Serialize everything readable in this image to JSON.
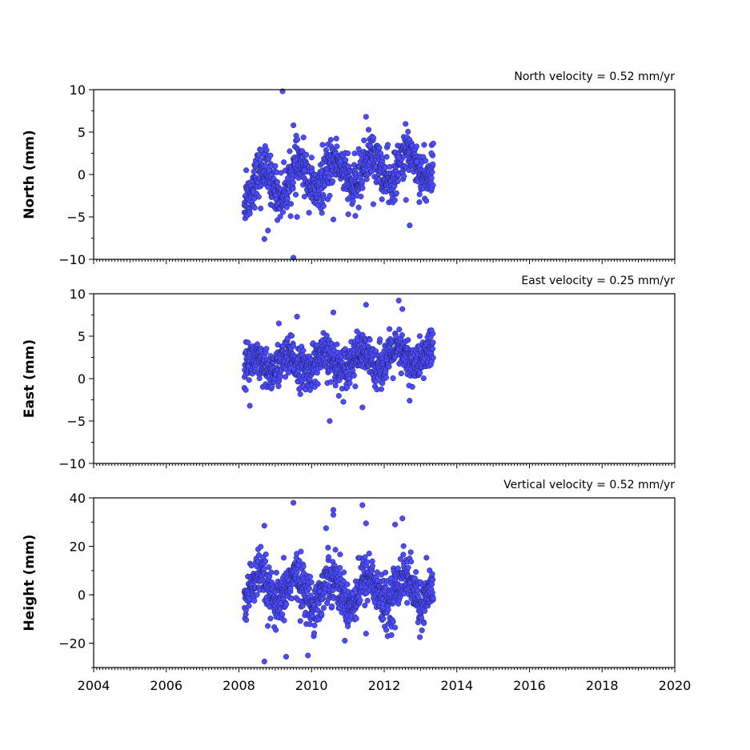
{
  "chart_data": [
    {
      "type": "scatter",
      "ylabel": "North (mm)",
      "annotation": "North velocity = 0.52 mm/yr",
      "xlim": [
        2004,
        2020
      ],
      "ylim": [
        -10,
        10
      ],
      "yticks": [
        10,
        5,
        0,
        -5,
        -10
      ],
      "ytick_labels": [
        "10",
        "5",
        "0",
        "−5",
        "−10"
      ],
      "xticks": [
        2004,
        2006,
        2008,
        2010,
        2012,
        2014,
        2016,
        2018,
        2020
      ],
      "xtick_labels": [],
      "marker_color": "#4c4cff",
      "data_x_range": [
        2008.15,
        2013.35
      ],
      "series_description_points": [
        [
          2008.2,
          0.5
        ],
        [
          2008.4,
          -2.0
        ],
        [
          2008.6,
          -4.0
        ],
        [
          2008.8,
          -1.5
        ],
        [
          2009.0,
          1.0
        ],
        [
          2009.2,
          9.8
        ],
        [
          2009.5,
          5.8
        ],
        [
          2009.5,
          -9.8
        ],
        [
          2009.6,
          -5.0
        ],
        [
          2009.8,
          0.5
        ],
        [
          2010.0,
          2.0
        ],
        [
          2010.3,
          3.5
        ],
        [
          2010.5,
          -2.5
        ],
        [
          2010.6,
          -5.3
        ],
        [
          2010.8,
          1.5
        ],
        [
          2011.0,
          2.5
        ],
        [
          2011.3,
          3.0
        ],
        [
          2011.5,
          6.8
        ],
        [
          2011.7,
          -3.5
        ],
        [
          2011.9,
          2.5
        ],
        [
          2012.1,
          3.5
        ],
        [
          2012.4,
          2.0
        ],
        [
          2012.6,
          -3.0
        ],
        [
          2012.7,
          -6.0
        ],
        [
          2012.9,
          1.5
        ],
        [
          2013.1,
          3.5
        ],
        [
          2013.3,
          2.5
        ],
        [
          2008.7,
          -7.6
        ],
        [
          2008.8,
          -6.6
        ]
      ]
    },
    {
      "type": "scatter",
      "ylabel": "East (mm)",
      "annotation": "East velocity = 0.25 mm/yr",
      "xlim": [
        2004,
        2020
      ],
      "ylim": [
        -10,
        10
      ],
      "yticks": [
        10,
        5,
        0,
        -5,
        -10
      ],
      "ytick_labels": [
        "10",
        "5",
        "0",
        "−5",
        "−10"
      ],
      "xticks": [
        2004,
        2006,
        2008,
        2010,
        2012,
        2014,
        2016,
        2018,
        2020
      ],
      "xtick_labels": [],
      "marker_color": "#4c4cff",
      "data_x_range": [
        2008.15,
        2013.35
      ],
      "series_description_points": [
        [
          2008.3,
          -3.2
        ],
        [
          2009.1,
          6.5
        ],
        [
          2009.6,
          7.3
        ],
        [
          2010.5,
          -5.0
        ],
        [
          2010.6,
          7.8
        ],
        [
          2011.4,
          -3.4
        ],
        [
          2011.5,
          8.7
        ],
        [
          2012.4,
          9.2
        ],
        [
          2012.5,
          8.2
        ],
        [
          2012.7,
          -2.6
        ],
        [
          2013.3,
          5.7
        ]
      ]
    },
    {
      "type": "scatter",
      "ylabel": "Height (mm)",
      "annotation": "Vertical velocity = 0.52 mm/yr",
      "xlim": [
        2004,
        2020
      ],
      "ylim": [
        -30,
        40
      ],
      "yticks": [
        40,
        20,
        0,
        -20
      ],
      "ytick_labels": [
        "40",
        "20",
        "0",
        "−20"
      ],
      "xticks": [
        2004,
        2006,
        2008,
        2010,
        2012,
        2014,
        2016,
        2018,
        2020
      ],
      "xtick_labels": [
        "2004",
        "2006",
        "2008",
        "2010",
        "2012",
        "2014",
        "2016",
        "2018",
        "2020"
      ],
      "marker_color": "#4c4cff",
      "data_x_range": [
        2008.15,
        2013.35
      ],
      "series_description_points": [
        [
          2008.7,
          -27.5
        ],
        [
          2008.7,
          28.5
        ],
        [
          2009.3,
          -25.5
        ],
        [
          2009.5,
          38.0
        ],
        [
          2009.9,
          -25.0
        ],
        [
          2010.4,
          27.5
        ],
        [
          2010.6,
          35.0
        ],
        [
          2010.6,
          33.0
        ],
        [
          2011.4,
          37.0
        ],
        [
          2011.5,
          29.5
        ],
        [
          2011.5,
          -16.0
        ],
        [
          2012.3,
          29.0
        ],
        [
          2012.5,
          31.5
        ],
        [
          2012.3,
          -13.5
        ]
      ]
    }
  ]
}
